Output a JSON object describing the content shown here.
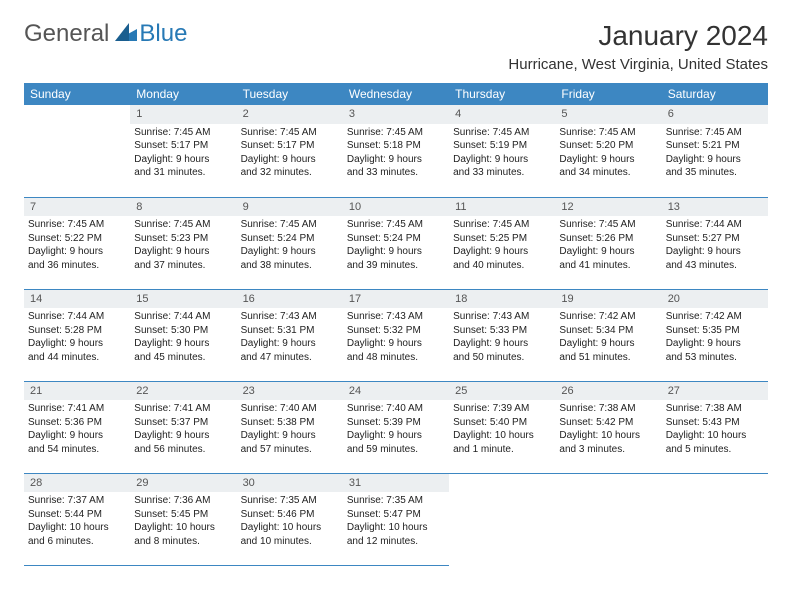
{
  "logo": {
    "part1": "General",
    "part2": "Blue"
  },
  "title": "January 2024",
  "location": "Hurricane, West Virginia, United States",
  "header_bg": "#3d87c2",
  "daynum_bg": "#eceff1",
  "border_color": "#3d87c2",
  "dow": [
    "Sunday",
    "Monday",
    "Tuesday",
    "Wednesday",
    "Thursday",
    "Friday",
    "Saturday"
  ],
  "weeks": [
    [
      null,
      {
        "n": "1",
        "sr": "Sunrise: 7:45 AM",
        "ss": "Sunset: 5:17 PM",
        "dl1": "Daylight: 9 hours",
        "dl2": "and 31 minutes."
      },
      {
        "n": "2",
        "sr": "Sunrise: 7:45 AM",
        "ss": "Sunset: 5:17 PM",
        "dl1": "Daylight: 9 hours",
        "dl2": "and 32 minutes."
      },
      {
        "n": "3",
        "sr": "Sunrise: 7:45 AM",
        "ss": "Sunset: 5:18 PM",
        "dl1": "Daylight: 9 hours",
        "dl2": "and 33 minutes."
      },
      {
        "n": "4",
        "sr": "Sunrise: 7:45 AM",
        "ss": "Sunset: 5:19 PM",
        "dl1": "Daylight: 9 hours",
        "dl2": "and 33 minutes."
      },
      {
        "n": "5",
        "sr": "Sunrise: 7:45 AM",
        "ss": "Sunset: 5:20 PM",
        "dl1": "Daylight: 9 hours",
        "dl2": "and 34 minutes."
      },
      {
        "n": "6",
        "sr": "Sunrise: 7:45 AM",
        "ss": "Sunset: 5:21 PM",
        "dl1": "Daylight: 9 hours",
        "dl2": "and 35 minutes."
      }
    ],
    [
      {
        "n": "7",
        "sr": "Sunrise: 7:45 AM",
        "ss": "Sunset: 5:22 PM",
        "dl1": "Daylight: 9 hours",
        "dl2": "and 36 minutes."
      },
      {
        "n": "8",
        "sr": "Sunrise: 7:45 AM",
        "ss": "Sunset: 5:23 PM",
        "dl1": "Daylight: 9 hours",
        "dl2": "and 37 minutes."
      },
      {
        "n": "9",
        "sr": "Sunrise: 7:45 AM",
        "ss": "Sunset: 5:24 PM",
        "dl1": "Daylight: 9 hours",
        "dl2": "and 38 minutes."
      },
      {
        "n": "10",
        "sr": "Sunrise: 7:45 AM",
        "ss": "Sunset: 5:24 PM",
        "dl1": "Daylight: 9 hours",
        "dl2": "and 39 minutes."
      },
      {
        "n": "11",
        "sr": "Sunrise: 7:45 AM",
        "ss": "Sunset: 5:25 PM",
        "dl1": "Daylight: 9 hours",
        "dl2": "and 40 minutes."
      },
      {
        "n": "12",
        "sr": "Sunrise: 7:45 AM",
        "ss": "Sunset: 5:26 PM",
        "dl1": "Daylight: 9 hours",
        "dl2": "and 41 minutes."
      },
      {
        "n": "13",
        "sr": "Sunrise: 7:44 AM",
        "ss": "Sunset: 5:27 PM",
        "dl1": "Daylight: 9 hours",
        "dl2": "and 43 minutes."
      }
    ],
    [
      {
        "n": "14",
        "sr": "Sunrise: 7:44 AM",
        "ss": "Sunset: 5:28 PM",
        "dl1": "Daylight: 9 hours",
        "dl2": "and 44 minutes."
      },
      {
        "n": "15",
        "sr": "Sunrise: 7:44 AM",
        "ss": "Sunset: 5:30 PM",
        "dl1": "Daylight: 9 hours",
        "dl2": "and 45 minutes."
      },
      {
        "n": "16",
        "sr": "Sunrise: 7:43 AM",
        "ss": "Sunset: 5:31 PM",
        "dl1": "Daylight: 9 hours",
        "dl2": "and 47 minutes."
      },
      {
        "n": "17",
        "sr": "Sunrise: 7:43 AM",
        "ss": "Sunset: 5:32 PM",
        "dl1": "Daylight: 9 hours",
        "dl2": "and 48 minutes."
      },
      {
        "n": "18",
        "sr": "Sunrise: 7:43 AM",
        "ss": "Sunset: 5:33 PM",
        "dl1": "Daylight: 9 hours",
        "dl2": "and 50 minutes."
      },
      {
        "n": "19",
        "sr": "Sunrise: 7:42 AM",
        "ss": "Sunset: 5:34 PM",
        "dl1": "Daylight: 9 hours",
        "dl2": "and 51 minutes."
      },
      {
        "n": "20",
        "sr": "Sunrise: 7:42 AM",
        "ss": "Sunset: 5:35 PM",
        "dl1": "Daylight: 9 hours",
        "dl2": "and 53 minutes."
      }
    ],
    [
      {
        "n": "21",
        "sr": "Sunrise: 7:41 AM",
        "ss": "Sunset: 5:36 PM",
        "dl1": "Daylight: 9 hours",
        "dl2": "and 54 minutes."
      },
      {
        "n": "22",
        "sr": "Sunrise: 7:41 AM",
        "ss": "Sunset: 5:37 PM",
        "dl1": "Daylight: 9 hours",
        "dl2": "and 56 minutes."
      },
      {
        "n": "23",
        "sr": "Sunrise: 7:40 AM",
        "ss": "Sunset: 5:38 PM",
        "dl1": "Daylight: 9 hours",
        "dl2": "and 57 minutes."
      },
      {
        "n": "24",
        "sr": "Sunrise: 7:40 AM",
        "ss": "Sunset: 5:39 PM",
        "dl1": "Daylight: 9 hours",
        "dl2": "and 59 minutes."
      },
      {
        "n": "25",
        "sr": "Sunrise: 7:39 AM",
        "ss": "Sunset: 5:40 PM",
        "dl1": "Daylight: 10 hours",
        "dl2": "and 1 minute."
      },
      {
        "n": "26",
        "sr": "Sunrise: 7:38 AM",
        "ss": "Sunset: 5:42 PM",
        "dl1": "Daylight: 10 hours",
        "dl2": "and 3 minutes."
      },
      {
        "n": "27",
        "sr": "Sunrise: 7:38 AM",
        "ss": "Sunset: 5:43 PM",
        "dl1": "Daylight: 10 hours",
        "dl2": "and 5 minutes."
      }
    ],
    [
      {
        "n": "28",
        "sr": "Sunrise: 7:37 AM",
        "ss": "Sunset: 5:44 PM",
        "dl1": "Daylight: 10 hours",
        "dl2": "and 6 minutes."
      },
      {
        "n": "29",
        "sr": "Sunrise: 7:36 AM",
        "ss": "Sunset: 5:45 PM",
        "dl1": "Daylight: 10 hours",
        "dl2": "and 8 minutes."
      },
      {
        "n": "30",
        "sr": "Sunrise: 7:35 AM",
        "ss": "Sunset: 5:46 PM",
        "dl1": "Daylight: 10 hours",
        "dl2": "and 10 minutes."
      },
      {
        "n": "31",
        "sr": "Sunrise: 7:35 AM",
        "ss": "Sunset: 5:47 PM",
        "dl1": "Daylight: 10 hours",
        "dl2": "and 12 minutes."
      },
      null,
      null,
      null
    ]
  ]
}
